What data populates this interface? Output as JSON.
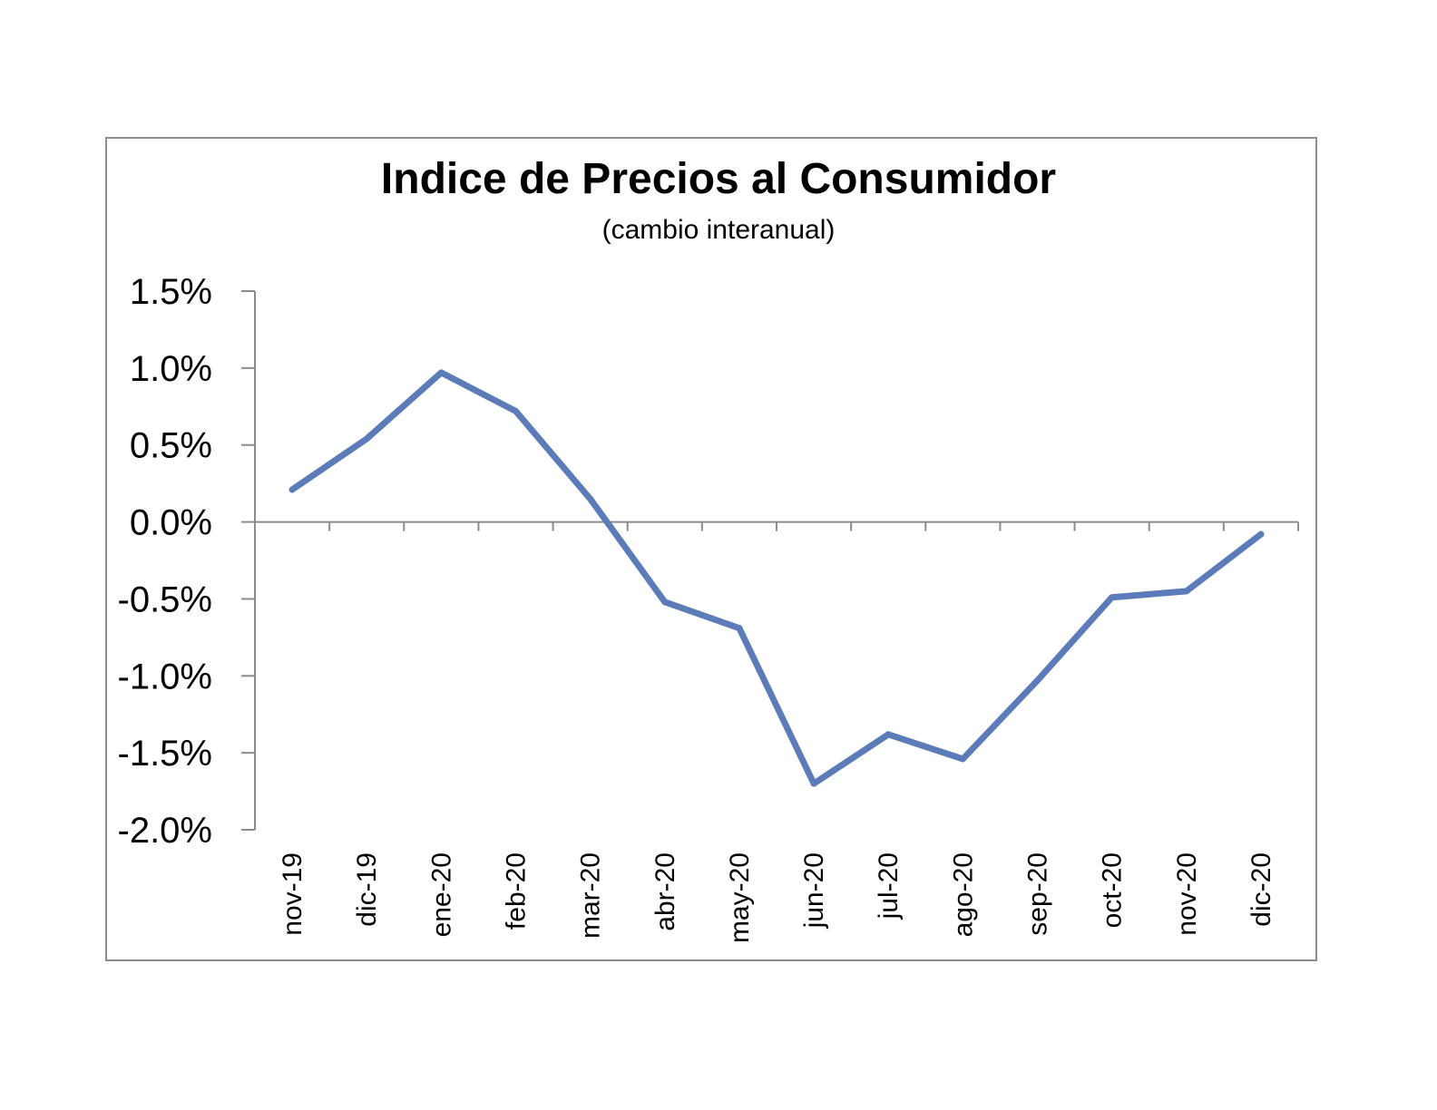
{
  "chart_data": {
    "type": "line",
    "title": "Indice de Precios al Consumidor",
    "subtitle": "(cambio interanual)",
    "xlabel": "",
    "ylabel": "",
    "categories": [
      "nov-19",
      "dic-19",
      "ene-20",
      "feb-20",
      "mar-20",
      "abr-20",
      "may-20",
      "jun-20",
      "jul-20",
      "ago-20",
      "sep-20",
      "oct-20",
      "nov-20",
      "dic-20"
    ],
    "series": [
      {
        "values": [
          0.21,
          0.54,
          0.97,
          0.72,
          0.15,
          -0.52,
          -0.69,
          -1.7,
          -1.38,
          -1.54,
          -1.03,
          -0.49,
          -0.45,
          -0.08
        ]
      }
    ],
    "ylim": [
      -2.0,
      1.5
    ],
    "yticks": [
      1.5,
      1.0,
      0.5,
      0.0,
      -0.5,
      -1.0,
      -1.5,
      -2.0
    ],
    "ytick_labels": [
      "1.5%",
      "1.0%",
      "0.5%",
      "0.0%",
      "-0.5%",
      "-1.0%",
      "-1.5%",
      "-2.0%"
    ],
    "grid": false,
    "legend": "none",
    "line_color": "#5b7cb9",
    "axis_color": "#8c8c8c"
  }
}
